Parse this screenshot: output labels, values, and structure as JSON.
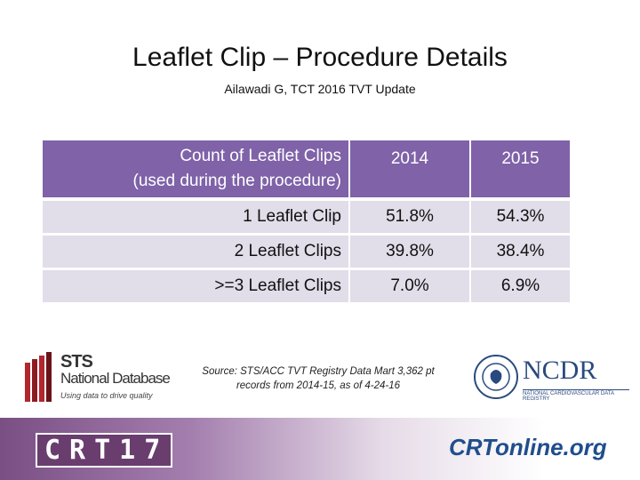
{
  "header": {
    "title": "Leaflet Clip – Procedure Details",
    "subtitle": "Ailawadi G, TCT 2016 TVT Update"
  },
  "table": {
    "header": [
      [
        "Count of Leaflet Clips",
        "(used during the procedure)"
      ],
      "2014",
      "2015"
    ],
    "rows": [
      [
        "1 Leaflet Clip",
        "51.8%",
        "54.3%"
      ],
      [
        "2 Leaflet Clips",
        "39.8%",
        "38.4%"
      ],
      [
        ">=3 Leaflet Clips",
        "7.0%",
        "6.9%"
      ]
    ]
  },
  "source": [
    "Source: STS/ACC TVT Registry Data Mart 3,362 pt",
    "records from 2014-15, as of 4-24-16"
  ],
  "logos": {
    "sts": [
      "STS",
      "National Database",
      "Using data to drive quality"
    ],
    "ncdr": [
      "NCDR",
      "NATIONAL CARDIOVASCULAR DATA REGISTRY"
    ],
    "crt": "CRT17",
    "crtonline": "CRTonline.org"
  }
}
